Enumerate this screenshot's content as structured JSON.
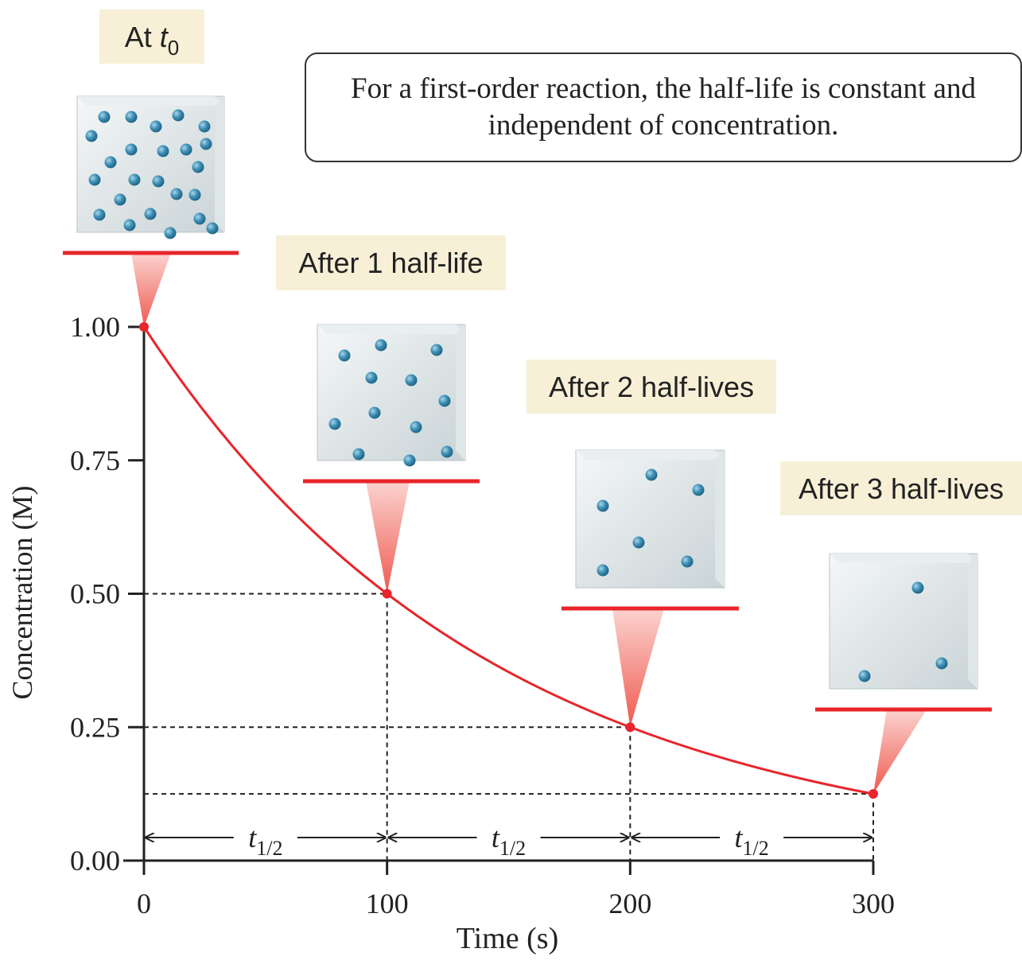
{
  "chart_data": {
    "type": "line",
    "title": "For a first-order reaction, the half-life is constant and independent of concentration.",
    "x_label": "Time (s)",
    "y_label": "Concentration (M)",
    "x": [
      0,
      100,
      200,
      300
    ],
    "series": [
      {
        "color": "#e8262b",
        "values": [
          1.0,
          0.5,
          0.25,
          0.125
        ]
      }
    ],
    "xlim": [
      0,
      300
    ],
    "ylim": [
      0,
      1
    ],
    "xticks": [
      0,
      100,
      200,
      300
    ],
    "yticks": [
      {
        "value": 0,
        "label": "0.00"
      },
      {
        "value": 0.25,
        "label": "0.25"
      },
      {
        "value": 0.5,
        "label": "0.50"
      },
      {
        "value": 0.75,
        "label": "0.75"
      },
      {
        "value": 1,
        "label": "1.00"
      }
    ],
    "snapshots": [
      {
        "prefix": "At",
        "symbol": "t",
        "subscript": "0"
      },
      {
        "label": "After 1 half-life"
      },
      {
        "label": "After 2 half-lives"
      },
      {
        "label": "After 3 half-lives"
      }
    ],
    "interval_label": {
      "symbol": "t",
      "subscript": "1/2"
    }
  }
}
